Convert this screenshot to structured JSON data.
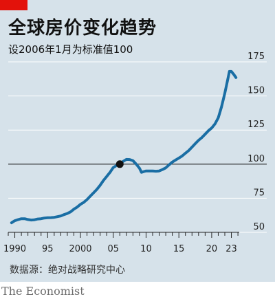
{
  "header": {
    "title": "全球房价变化趋势",
    "subtitle": "设2006年1月为标准值100"
  },
  "footer": {
    "source": "数据源：绝对战略研究中心",
    "brand": "The Economist"
  },
  "colors": {
    "background": "#d6e2ea",
    "accent_red": "#e3120b",
    "line": "#1a6ea4",
    "reference_line": "#222222",
    "marker": "#111111"
  },
  "chart_data": {
    "type": "line",
    "title": "全球房价变化趋势",
    "subtitle": "设2006年1月为标准值100",
    "xlabel": "",
    "ylabel": "",
    "xlim": [
      1989,
      2024.2
    ],
    "ylim": [
      50,
      175
    ],
    "y_axis_side": "right",
    "grid": true,
    "legend": "none",
    "x_ticks": [
      {
        "value": 1990,
        "label": "1990"
      },
      {
        "value": 1995,
        "label": "95"
      },
      {
        "value": 2000,
        "label": "2000"
      },
      {
        "value": 2005,
        "label": "05"
      },
      {
        "value": 2010,
        "label": "10"
      },
      {
        "value": 2015,
        "label": "15"
      },
      {
        "value": 2020,
        "label": "20"
      },
      {
        "value": 2023,
        "label": "23"
      }
    ],
    "y_ticks": [
      {
        "value": 50,
        "label": "50"
      },
      {
        "value": 75,
        "label": "75"
      },
      {
        "value": 100,
        "label": "100"
      },
      {
        "value": 125,
        "label": "125"
      },
      {
        "value": 150,
        "label": "150"
      },
      {
        "value": 175,
        "label": "175"
      }
    ],
    "reference_line": 100,
    "highlight_point": {
      "x": 2006.0,
      "y": 100
    },
    "series": [
      {
        "values": [
          [
            1989.5,
            57
          ],
          [
            1990.0,
            58.5
          ],
          [
            1990.5,
            59.3
          ],
          [
            1991.0,
            60
          ],
          [
            1991.5,
            60
          ],
          [
            1992.0,
            59.4
          ],
          [
            1992.5,
            59
          ],
          [
            1993.0,
            59.2
          ],
          [
            1993.5,
            59.8
          ],
          [
            1994.0,
            60
          ],
          [
            1994.5,
            60.5
          ],
          [
            1995.0,
            60.7
          ],
          [
            1995.5,
            60.8
          ],
          [
            1996.0,
            61
          ],
          [
            1996.5,
            61.5
          ],
          [
            1997.0,
            62
          ],
          [
            1997.5,
            63
          ],
          [
            1998.0,
            63.8
          ],
          [
            1998.5,
            65
          ],
          [
            1999.0,
            67
          ],
          [
            1999.5,
            68.5
          ],
          [
            2000.0,
            70.5
          ],
          [
            2000.5,
            72
          ],
          [
            2001.0,
            74
          ],
          [
            2001.5,
            76.5
          ],
          [
            2002.0,
            79
          ],
          [
            2002.5,
            81.5
          ],
          [
            2003.0,
            84.5
          ],
          [
            2003.5,
            88
          ],
          [
            2004.0,
            91
          ],
          [
            2004.5,
            94
          ],
          [
            2005.0,
            97.5
          ],
          [
            2005.5,
            99
          ],
          [
            2006.0,
            100
          ],
          [
            2006.5,
            102
          ],
          [
            2007.0,
            103.5
          ],
          [
            2007.5,
            103.4
          ],
          [
            2008.0,
            102.5
          ],
          [
            2008.5,
            100
          ],
          [
            2009.0,
            97
          ],
          [
            2009.3,
            94
          ],
          [
            2009.7,
            94.6
          ],
          [
            2010.0,
            95
          ],
          [
            2010.5,
            95
          ],
          [
            2011.0,
            95
          ],
          [
            2011.5,
            94.8
          ],
          [
            2012.0,
            95
          ],
          [
            2012.5,
            96
          ],
          [
            2013.0,
            97.3
          ],
          [
            2013.5,
            99.5
          ],
          [
            2014.0,
            101.5
          ],
          [
            2014.5,
            103
          ],
          [
            2015.0,
            104.5
          ],
          [
            2015.5,
            106
          ],
          [
            2016.0,
            108
          ],
          [
            2016.5,
            110
          ],
          [
            2017.0,
            112.5
          ],
          [
            2017.5,
            115
          ],
          [
            2018.0,
            117.5
          ],
          [
            2018.5,
            119.5
          ],
          [
            2019.0,
            122
          ],
          [
            2019.5,
            124.5
          ],
          [
            2020.0,
            126.5
          ],
          [
            2020.5,
            129.5
          ],
          [
            2021.0,
            134
          ],
          [
            2021.5,
            142
          ],
          [
            2022.0,
            152
          ],
          [
            2022.4,
            161
          ],
          [
            2022.7,
            168
          ],
          [
            2023.0,
            168
          ],
          [
            2023.4,
            165.5
          ],
          [
            2023.7,
            163.5
          ]
        ]
      }
    ]
  }
}
